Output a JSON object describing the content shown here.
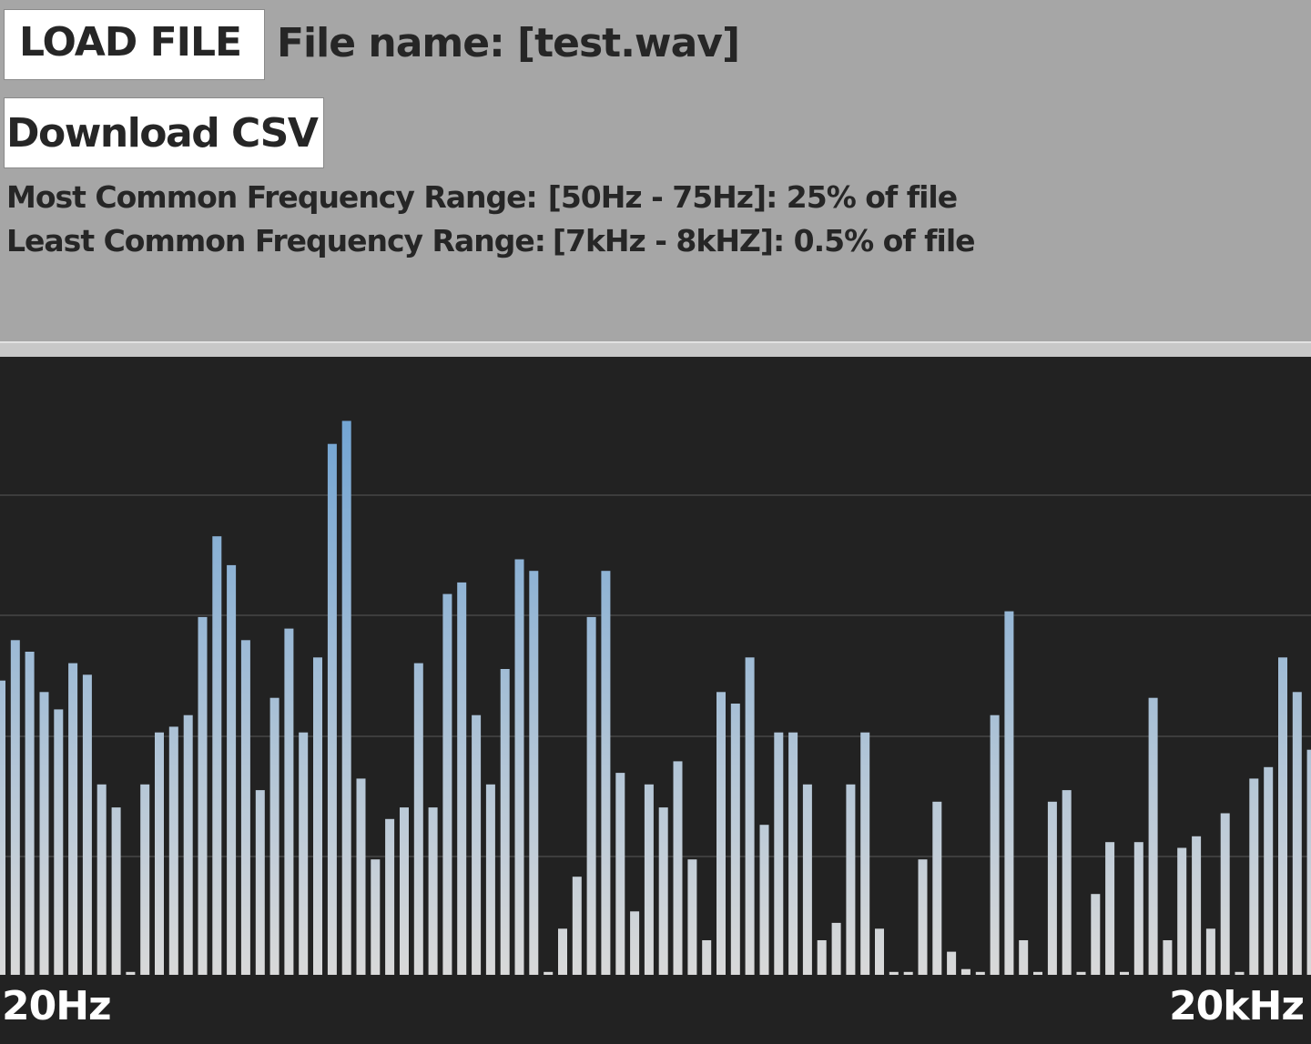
{
  "controls": {
    "load_label": "LOAD FILE",
    "file_name_label": "File name: [test.wav]",
    "download_label": "Download CSV"
  },
  "stats": {
    "most_common_label": "Most Common Frequency Range:",
    "most_common_value": "[50Hz - 75Hz]: 25% of file",
    "least_common_label": "Least Common Frequency Range:",
    "least_common_value": "[7kHz - 8kHZ]: 0.5% of file"
  },
  "chart_data": {
    "type": "bar",
    "x_min_label": "20Hz",
    "x_max_label": "20kHz",
    "ylim": [
      0,
      100
    ],
    "grid": true,
    "colors": {
      "background": "#222222",
      "bar_top": "#6fa3d3",
      "bar_bottom": "#d9d9d9",
      "grid": "#3d3d3d"
    },
    "values": [
      51,
      58,
      56,
      49,
      46,
      54,
      52,
      33,
      29,
      0.5,
      33,
      42,
      43,
      45,
      62,
      76,
      71,
      58,
      32,
      48,
      60,
      42,
      55,
      92,
      96,
      34,
      20,
      27,
      29,
      54,
      29,
      66,
      68,
      45,
      33,
      53,
      72,
      70,
      0.5,
      8,
      17,
      62,
      70,
      35,
      11,
      33,
      29,
      37,
      20,
      6,
      49,
      47,
      55,
      26,
      42,
      42,
      33,
      6,
      9,
      33,
      42,
      8,
      0.5,
      0.5,
      20,
      30,
      4,
      1,
      0.5,
      45,
      63,
      6,
      0.5,
      30,
      32,
      0.5,
      14,
      23,
      0.5,
      23,
      48,
      6,
      22,
      24,
      8,
      28,
      0.5,
      34,
      36,
      55,
      49,
      39
    ]
  }
}
